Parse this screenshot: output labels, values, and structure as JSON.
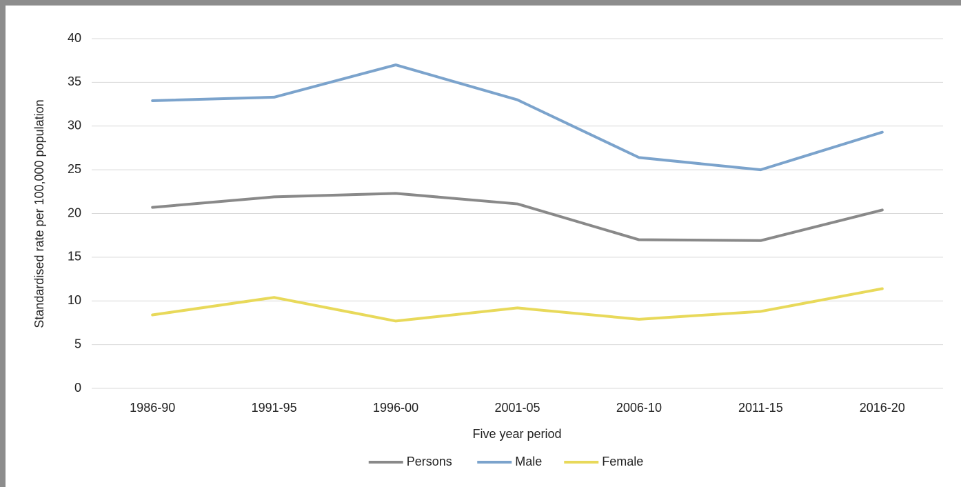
{
  "chart_data": {
    "type": "line",
    "x_label": "Five year period",
    "y_label": "Standardised rate per 100,000 population",
    "categories": [
      "1986-90",
      "1991-95",
      "1996-00",
      "2001-05",
      "2006-10",
      "2011-15",
      "2016-20"
    ],
    "series": [
      {
        "name": "Persons",
        "color": "#898989",
        "values": [
          20.7,
          21.9,
          22.3,
          21.1,
          17.0,
          16.9,
          20.4
        ]
      },
      {
        "name": "Male",
        "color": "#7ba3cc",
        "values": [
          32.9,
          33.3,
          37.0,
          33.0,
          26.4,
          25.0,
          29.3
        ]
      },
      {
        "name": "Female",
        "color": "#e8d95a",
        "values": [
          8.4,
          10.4,
          7.7,
          9.2,
          7.9,
          8.8,
          11.4
        ]
      }
    ],
    "ylim": [
      0,
      40
    ],
    "yticks": [
      0,
      5,
      10,
      15,
      20,
      25,
      30,
      35,
      40
    ],
    "grid": true,
    "legend": "bottom"
  }
}
